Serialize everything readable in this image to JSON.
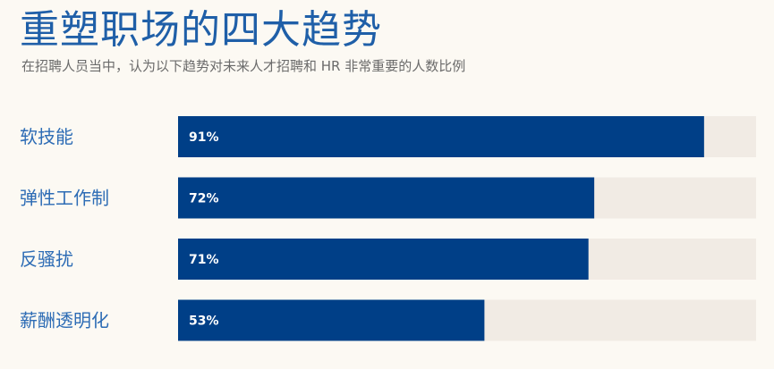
{
  "chart_data": {
    "type": "bar",
    "orientation": "horizontal",
    "title": "重塑职场的四大趋势",
    "subtitle": "在招聘人员当中，认为以下趋势对未来人才招聘和 HR 非常重要的人数比例",
    "categories": [
      "软技能",
      "弹性工作制",
      "反骚扰",
      "薪酬透明化"
    ],
    "values": [
      91,
      72,
      71,
      53
    ],
    "value_labels": [
      "91%",
      "72%",
      "71%",
      "53%"
    ],
    "xlim": [
      0,
      100
    ],
    "grid": false,
    "legend": "none",
    "bar_color": "#003f87",
    "track_color": "#f1ebe4",
    "label_color": "#2d6cb5",
    "title_color": "#1f5fa8"
  }
}
